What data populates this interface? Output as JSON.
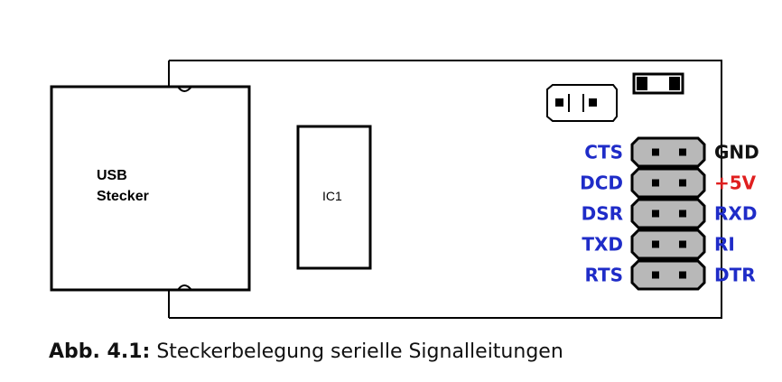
{
  "usb": {
    "line1": "USB",
    "line2": "Stecker"
  },
  "ic": {
    "label": "IC1"
  },
  "pins": {
    "left": [
      {
        "label": "CTS",
        "color": "#1f2cc8"
      },
      {
        "label": "DCD",
        "color": "#1f2cc8"
      },
      {
        "label": "DSR",
        "color": "#1f2cc8"
      },
      {
        "label": "TXD",
        "color": "#1f2cc8"
      },
      {
        "label": "RTS",
        "color": "#1f2cc8"
      }
    ],
    "right": [
      {
        "label": "GND",
        "color": "#111111"
      },
      {
        "label": "+5V",
        "color": "#e01f1f"
      },
      {
        "label": "RXD",
        "color": "#1f2cc8"
      },
      {
        "label": "RI",
        "color": "#1f2cc8"
      },
      {
        "label": "DTR",
        "color": "#1f2cc8"
      }
    ]
  },
  "caption": {
    "prefix": "Abb. 4.1:",
    "text": "Steckerbelegung serielle Signalleitungen"
  }
}
